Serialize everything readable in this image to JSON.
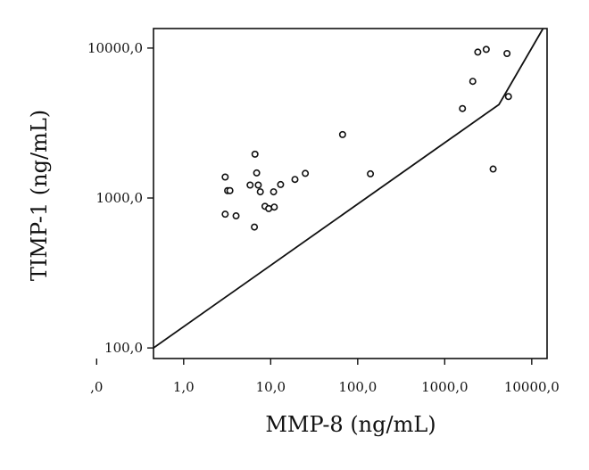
{
  "chart_data": {
    "type": "scatter",
    "xlabel": "MMP-8 (ng/mL)",
    "ylabel": "TIMP-1 (ng/mL)",
    "x_scale": "log",
    "y_scale": "log",
    "xlim": [
      0.45,
      15000
    ],
    "ylim": [
      85,
      13500
    ],
    "grid": false,
    "x_ticks": [
      {
        "value": 0.1,
        "label": ",0"
      },
      {
        "value": 1,
        "label": "1,0"
      },
      {
        "value": 10,
        "label": "10,0"
      },
      {
        "value": 100,
        "label": "100,0"
      },
      {
        "value": 1000,
        "label": "1000,0"
      },
      {
        "value": 10000,
        "label": "10000,0"
      }
    ],
    "y_ticks": [
      {
        "value": 100,
        "label": "100,0"
      },
      {
        "value": 1000,
        "label": "1000,0"
      },
      {
        "value": 10000,
        "label": "10000,0"
      }
    ],
    "points": [
      {
        "x": 3.0,
        "y": 1380
      },
      {
        "x": 3.2,
        "y": 1120
      },
      {
        "x": 3.4,
        "y": 1120
      },
      {
        "x": 3.0,
        "y": 780
      },
      {
        "x": 4.0,
        "y": 760
      },
      {
        "x": 5.8,
        "y": 1220
      },
      {
        "x": 6.6,
        "y": 1960
      },
      {
        "x": 6.9,
        "y": 1470
      },
      {
        "x": 7.2,
        "y": 1220
      },
      {
        "x": 7.6,
        "y": 1100
      },
      {
        "x": 6.5,
        "y": 640
      },
      {
        "x": 8.6,
        "y": 880
      },
      {
        "x": 9.5,
        "y": 850
      },
      {
        "x": 11.0,
        "y": 870
      },
      {
        "x": 10.8,
        "y": 1100
      },
      {
        "x": 13.0,
        "y": 1230
      },
      {
        "x": 19.0,
        "y": 1330
      },
      {
        "x": 25.0,
        "y": 1460
      },
      {
        "x": 67.0,
        "y": 2650
      },
      {
        "x": 140.0,
        "y": 1450
      },
      {
        "x": 1600.0,
        "y": 3950
      },
      {
        "x": 2100.0,
        "y": 6000
      },
      {
        "x": 2400.0,
        "y": 9400
      },
      {
        "x": 3000.0,
        "y": 9800
      },
      {
        "x": 3600.0,
        "y": 1560
      },
      {
        "x": 5200.0,
        "y": 9200
      },
      {
        "x": 5400.0,
        "y": 4750
      }
    ],
    "line": {
      "x": [
        0.45,
        4200,
        13500
      ],
      "y": [
        100,
        4200,
        13500
      ]
    }
  }
}
